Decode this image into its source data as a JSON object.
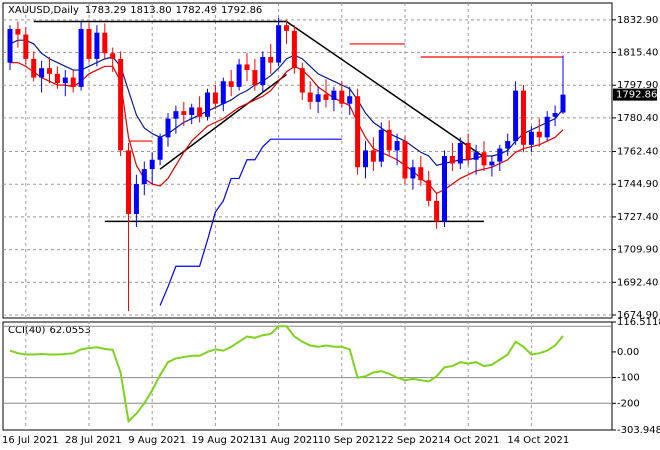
{
  "chart_data": [
    {
      "type": "candlestick",
      "symbol": "XAUUSD,Daily",
      "last_labels": [
        "1783.29",
        "1813.80",
        "1782.49",
        "1792.86"
      ],
      "up_color": "#0000ff",
      "down_color": "#ff0000",
      "categories": [
        null,
        null,
        "16 Jul 2021",
        null,
        null,
        null,
        null,
        null,
        null,
        null,
        "28 Jul 2021",
        null,
        null,
        null,
        null,
        null,
        null,
        null,
        "9 Aug 2021",
        null,
        null,
        null,
        null,
        null,
        null,
        null,
        "19 Aug 2021",
        null,
        null,
        null,
        null,
        null,
        null,
        null,
        "31 Aug 2021",
        null,
        null,
        null,
        null,
        null,
        null,
        null,
        "10 Sep 2021",
        null,
        null,
        null,
        null,
        null,
        null,
        null,
        "22 Sep 2021",
        null,
        null,
        null,
        null,
        null,
        null,
        null,
        "4 Oct 2021",
        null,
        null,
        null,
        null,
        null,
        null,
        null,
        "14 Oct 2021",
        null,
        null,
        null,
        null
      ],
      "candles": [
        [
          1810,
          1830,
          1806,
          1828
        ],
        [
          1828,
          1832,
          1818,
          1825
        ],
        [
          1825,
          1829,
          1809,
          1812
        ],
        [
          1812,
          1816,
          1800,
          1802
        ],
        [
          1802,
          1811,
          1794,
          1807
        ],
        [
          1807,
          1813,
          1799,
          1804
        ],
        [
          1804,
          1808,
          1796,
          1799
        ],
        [
          1799,
          1806,
          1792,
          1802
        ],
        [
          1802,
          1806,
          1794,
          1797
        ],
        [
          1797,
          1832,
          1795,
          1828
        ],
        [
          1828,
          1831,
          1810,
          1812
        ],
        [
          1812,
          1830,
          1808,
          1826
        ],
        [
          1826,
          1831,
          1812,
          1815
        ],
        [
          1815,
          1818,
          1805,
          1812
        ],
        [
          1812,
          1816,
          1760,
          1763
        ],
        [
          1763,
          1767,
          1677,
          1729
        ],
        [
          1729,
          1750,
          1722,
          1745
        ],
        [
          1745,
          1757,
          1739,
          1753
        ],
        [
          1753,
          1762,
          1745,
          1758
        ],
        [
          1758,
          1772,
          1755,
          1770
        ],
        [
          1770,
          1783,
          1765,
          1780
        ],
        [
          1780,
          1787,
          1772,
          1784
        ],
        [
          1784,
          1789,
          1776,
          1782
        ],
        [
          1782,
          1788,
          1777,
          1786
        ],
        [
          1786,
          1792,
          1778,
          1781
        ],
        [
          1781,
          1796,
          1779,
          1794
        ],
        [
          1794,
          1798,
          1785,
          1788
        ],
        [
          1788,
          1802,
          1784,
          1800
        ],
        [
          1800,
          1806,
          1792,
          1797
        ],
        [
          1797,
          1812,
          1795,
          1809
        ],
        [
          1809,
          1815,
          1800,
          1806
        ],
        [
          1806,
          1812,
          1795,
          1798
        ],
        [
          1798,
          1816,
          1794,
          1813
        ],
        [
          1813,
          1820,
          1804,
          1810
        ],
        [
          1810,
          1834,
          1808,
          1830
        ],
        [
          1830,
          1833,
          1820,
          1827
        ],
        [
          1827,
          1830,
          1804,
          1807
        ],
        [
          1807,
          1810,
          1790,
          1794
        ],
        [
          1794,
          1800,
          1785,
          1789
        ],
        [
          1789,
          1797,
          1783,
          1793
        ],
        [
          1793,
          1801,
          1786,
          1790
        ],
        [
          1790,
          1797,
          1784,
          1795
        ],
        [
          1795,
          1800,
          1786,
          1788
        ],
        [
          1788,
          1797,
          1782,
          1792
        ],
        [
          1792,
          1796,
          1750,
          1754
        ],
        [
          1754,
          1768,
          1748,
          1763
        ],
        [
          1763,
          1770,
          1752,
          1757
        ],
        [
          1757,
          1778,
          1754,
          1774
        ],
        [
          1774,
          1779,
          1760,
          1763
        ],
        [
          1763,
          1772,
          1755,
          1768
        ],
        [
          1768,
          1771,
          1745,
          1748
        ],
        [
          1748,
          1758,
          1742,
          1754
        ],
        [
          1754,
          1760,
          1744,
          1747
        ],
        [
          1747,
          1752,
          1733,
          1736
        ],
        [
          1736,
          1740,
          1721,
          1725
        ],
        [
          1725,
          1763,
          1722,
          1760
        ],
        [
          1760,
          1767,
          1752,
          1756
        ],
        [
          1756,
          1770,
          1753,
          1767
        ],
        [
          1767,
          1772,
          1755,
          1758
        ],
        [
          1758,
          1766,
          1750,
          1762
        ],
        [
          1762,
          1768,
          1752,
          1755
        ],
        [
          1755,
          1760,
          1749,
          1757
        ],
        [
          1757,
          1766,
          1752,
          1764
        ],
        [
          1764,
          1772,
          1760,
          1768
        ],
        [
          1768,
          1800,
          1766,
          1795
        ],
        [
          1795,
          1798,
          1762,
          1766
        ],
        [
          1766,
          1776,
          1762,
          1773
        ],
        [
          1773,
          1780,
          1765,
          1770
        ],
        [
          1770,
          1784,
          1768,
          1781
        ],
        [
          1781,
          1787,
          1776,
          1783
        ],
        [
          1783.29,
          1813.8,
          1782.49,
          1792.86
        ]
      ],
      "overlays": [
        {
          "color": "#0a1a8c",
          "values": [
            1820,
            1822,
            1822,
            1820,
            1815,
            1812,
            1810,
            1808,
            1806,
            1806,
            1808,
            1810,
            1812,
            1813,
            1808,
            1795,
            1782,
            1775,
            1772,
            1770,
            1772,
            1775,
            1778,
            1780,
            1782,
            1784,
            1786,
            1788,
            1790,
            1793,
            1795,
            1798,
            1800,
            1803,
            1807,
            1812,
            1814,
            1812,
            1808,
            1804,
            1802,
            1800,
            1798,
            1796,
            1790,
            1783,
            1778,
            1775,
            1772,
            1770,
            1768,
            1765,
            1762,
            1760,
            1755,
            1756,
            1757,
            1758,
            1758,
            1759,
            1760,
            1760,
            1761,
            1763,
            1768,
            1772,
            1774,
            1776,
            1778,
            1780,
            1785
          ]
        },
        {
          "color": "#e00000",
          "values": [
            1810,
            1810,
            1808,
            1805,
            1802,
            1800,
            1798,
            1798,
            1797,
            1800,
            1804,
            1806,
            1808,
            1808,
            1800,
            1770,
            1755,
            1748,
            1745,
            1744,
            1748,
            1755,
            1762,
            1768,
            1772,
            1776,
            1778,
            1780,
            1783,
            1786,
            1788,
            1790,
            1792,
            1795,
            1800,
            1805,
            1808,
            1806,
            1802,
            1797,
            1794,
            1791,
            1789,
            1787,
            1778,
            1770,
            1764,
            1762,
            1760,
            1758,
            1755,
            1752,
            1748,
            1745,
            1740,
            1742,
            1745,
            1748,
            1750,
            1752,
            1753,
            1754,
            1756,
            1758,
            1762,
            1764,
            1765,
            1766,
            1768,
            1770,
            1774
          ]
        },
        {
          "color": "#0000ff",
          "values": [
            null,
            null,
            null,
            null,
            null,
            null,
            null,
            null,
            null,
            null,
            null,
            null,
            null,
            null,
            null,
            null,
            null,
            null,
            null,
            1680,
            1690,
            1701,
            1701,
            1701,
            1701,
            1715,
            1730,
            1736,
            1748,
            1748,
            1758,
            1758,
            1765,
            1769,
            1769,
            1769,
            1769,
            1769,
            1769,
            1769,
            1769,
            1769,
            1769,
            null,
            null,
            null,
            null,
            null,
            null,
            null,
            null,
            null,
            null,
            null,
            null,
            null,
            null,
            null,
            null,
            null,
            null,
            null,
            null,
            null,
            null,
            null,
            null,
            null,
            null,
            null,
            null
          ]
        },
        {
          "color": "#ff0000",
          "values": [
            null,
            null,
            null,
            null,
            null,
            null,
            null,
            null,
            null,
            null,
            null,
            null,
            null,
            null,
            null,
            1768,
            1768,
            1768,
            1768,
            null,
            null,
            null,
            null,
            null,
            null,
            null,
            null,
            null,
            null,
            null,
            null,
            null,
            null,
            null,
            null,
            null,
            null,
            null,
            null,
            null,
            null,
            null,
            null,
            1820,
            1820,
            1820,
            1820,
            1820,
            1820,
            1820,
            1820,
            null,
            1813,
            1813,
            1813,
            1813,
            1813,
            1813,
            1813,
            1813,
            1813,
            1813,
            1813,
            1813,
            1813,
            1813,
            1813,
            1813,
            1813,
            1813,
            1813
          ]
        }
      ],
      "trendlines": [
        [
          3,
          1832,
          35,
          1832
        ],
        [
          35,
          1832,
          60,
          1759.5
        ],
        [
          19,
          1753,
          35,
          1803.6
        ],
        [
          12,
          1725,
          60,
          1725
        ]
      ],
      "trendline_color": "#000000",
      "ylim": [
        1673.3,
        1841.9
      ],
      "yticks": [
        {
          "value": 1832.9,
          "label": "1832.90"
        },
        {
          "value": 1815.4,
          "label": "1815.40"
        },
        {
          "value": 1797.9,
          "label": "1797.90"
        },
        {
          "value": 1780.4,
          "label": "1780.40"
        },
        {
          "value": 1762.4,
          "label": "1762.40"
        },
        {
          "value": 1744.9,
          "label": "1744.90"
        },
        {
          "value": 1727.4,
          "label": "1727.40"
        },
        {
          "value": 1709.9,
          "label": "1709.90"
        },
        {
          "value": 1692.4,
          "label": "1692.40"
        },
        {
          "value": 1674.9,
          "label": "1674.90"
        }
      ],
      "grid": true
    },
    {
      "type": "line",
      "name": "CCI(40)",
      "color": "#7ed321",
      "values": [
        5,
        -5,
        -10,
        -10,
        -8,
        -10,
        -10,
        -8,
        -5,
        10,
        15,
        18,
        12,
        8,
        -80,
        -270,
        -240,
        -200,
        -150,
        -90,
        -40,
        -25,
        -20,
        -15,
        -15,
        0,
        10,
        5,
        20,
        40,
        60,
        55,
        65,
        70,
        100,
        100,
        60,
        40,
        25,
        20,
        25,
        20,
        20,
        10,
        -100,
        -95,
        -80,
        -75,
        -85,
        -100,
        -110,
        -105,
        -110,
        -115,
        -95,
        -60,
        -55,
        -40,
        -45,
        -40,
        -55,
        -50,
        -30,
        -10,
        40,
        20,
        -10,
        -5,
        5,
        25,
        62.0553
      ],
      "levels": [
        100,
        -100,
        -200
      ],
      "ylim": [
        -303.9481,
        116.5118
      ],
      "yticks": [
        116.5118,
        {
          "value": 0,
          "label": "0.00"
        },
        -100,
        -200,
        -303.9481
      ]
    }
  ]
}
